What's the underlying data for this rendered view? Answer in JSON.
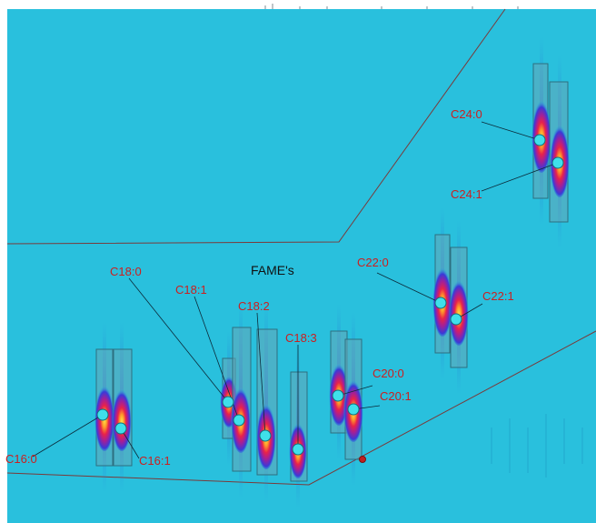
{
  "title": "FAME's",
  "colors": {
    "background": "#29c0dd",
    "label": "#cc1f1f",
    "leader": "#0b2a3a",
    "box_fill": "#66a6b6",
    "box_stroke": "#2d6f80",
    "marker": "#3fe0ea",
    "marker_stroke": "#0f6f80",
    "outline": "#7a3a3a",
    "dot": "#c02020"
  },
  "peaks": [
    {
      "id": "c16-0",
      "label": "C16:0"
    },
    {
      "id": "c16-1",
      "label": "C16:1"
    },
    {
      "id": "c18-0",
      "label": "C18:0"
    },
    {
      "id": "c18-1",
      "label": "C18:1"
    },
    {
      "id": "c18-2",
      "label": "C18:2"
    },
    {
      "id": "c18-3",
      "label": "C18:3"
    },
    {
      "id": "c20-0",
      "label": "C20:0"
    },
    {
      "id": "c20-1",
      "label": "C20:1"
    },
    {
      "id": "c22-0",
      "label": "C22:0"
    },
    {
      "id": "c22-1",
      "label": "C22:1"
    },
    {
      "id": "c24-0",
      "label": "C24:0"
    },
    {
      "id": "c24-1",
      "label": "C24:1"
    }
  ]
}
